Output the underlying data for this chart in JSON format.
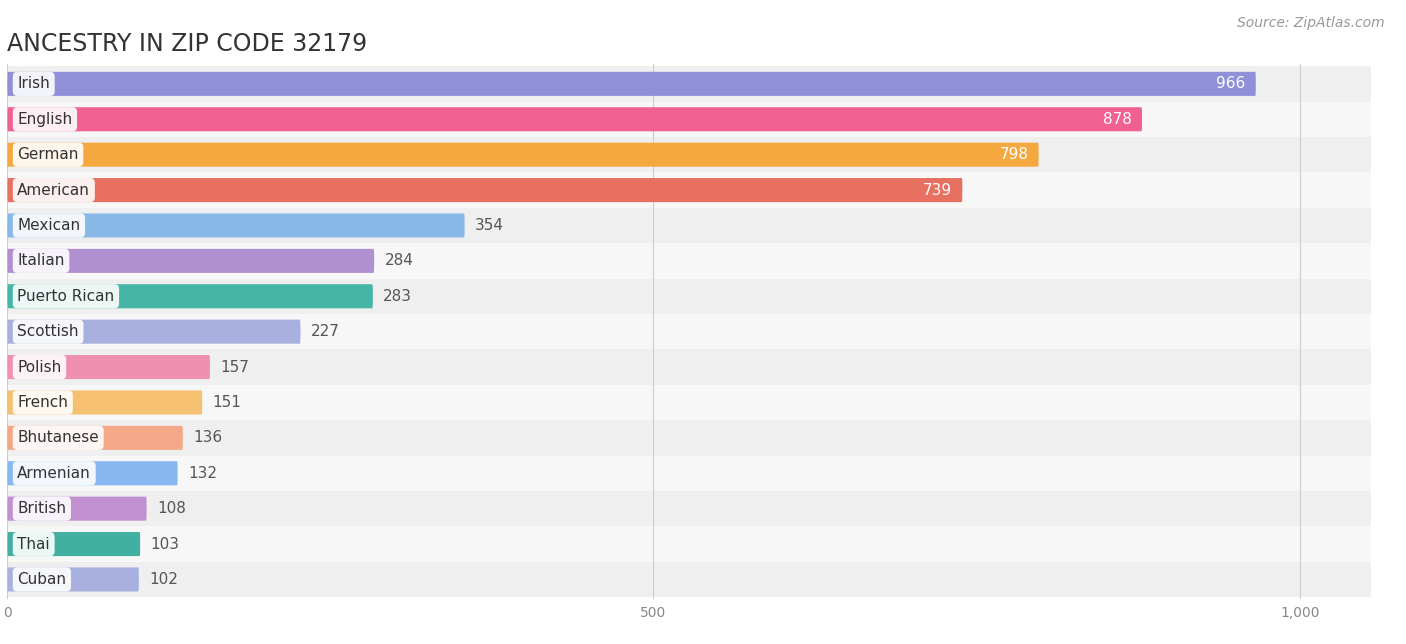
{
  "title": "ANCESTRY IN ZIP CODE 32179",
  "source": "Source: ZipAtlas.com",
  "categories": [
    "Irish",
    "English",
    "German",
    "American",
    "Mexican",
    "Italian",
    "Puerto Rican",
    "Scottish",
    "Polish",
    "French",
    "Bhutanese",
    "Armenian",
    "British",
    "Thai",
    "Cuban"
  ],
  "values": [
    966,
    878,
    798,
    739,
    354,
    284,
    283,
    227,
    157,
    151,
    136,
    132,
    108,
    103,
    102
  ],
  "bar_colors": [
    "#9090d8",
    "#f06090",
    "#f5a840",
    "#e87060",
    "#88b8e8",
    "#b090d0",
    "#45b5a8",
    "#a8b0e0",
    "#f090b0",
    "#f5c070",
    "#f5a888",
    "#88b8f0",
    "#c090d0",
    "#42b0a0",
    "#a8b0e0"
  ],
  "xlim": [
    0,
    1000
  ],
  "title_fontsize": 17,
  "label_fontsize": 11,
  "value_fontsize": 11,
  "source_fontsize": 10,
  "tick_labels": [
    "0",
    "500",
    "1,000"
  ],
  "tick_values": [
    0,
    500,
    1000
  ],
  "row_colors": [
    "#efefef",
    "#f7f7f7"
  ]
}
